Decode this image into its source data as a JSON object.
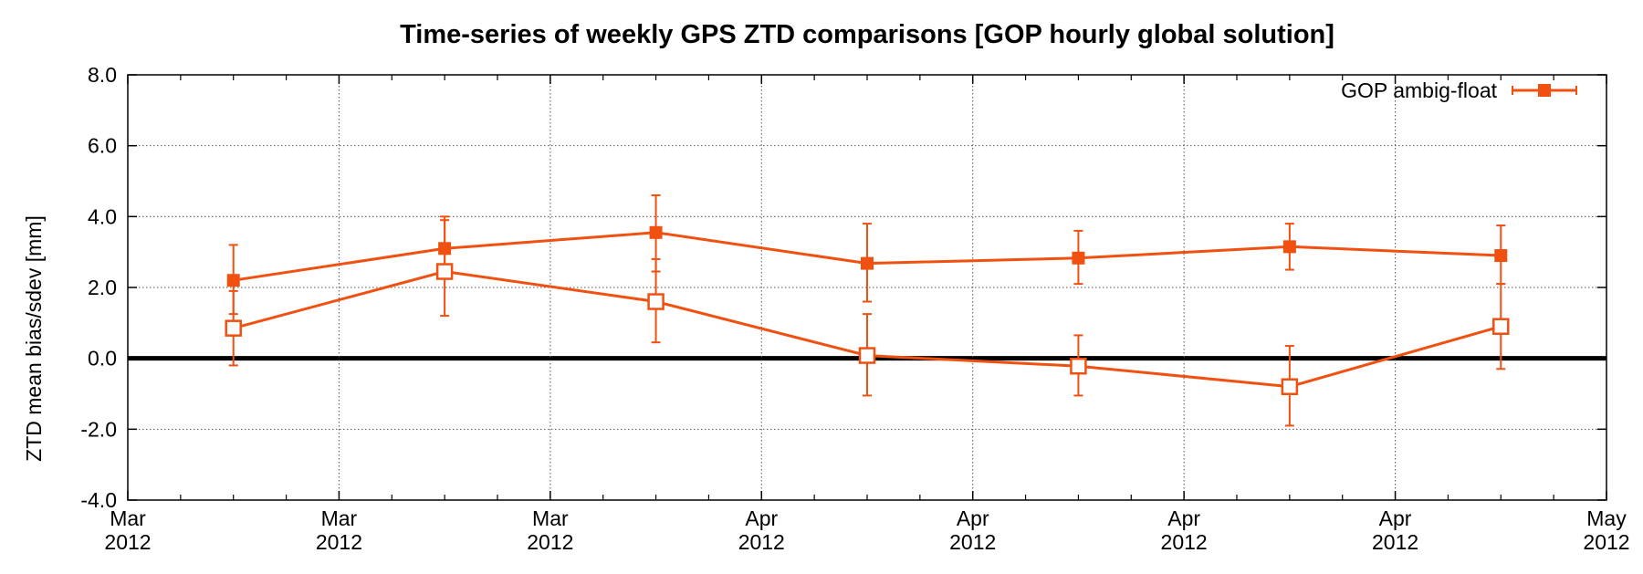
{
  "chart_data": {
    "type": "line",
    "title": "Time-series of weekly GPS ZTD comparisons [GOP hourly global solution]",
    "ylabel": "ZTD mean bias/sdev [mm]",
    "xlabel": "",
    "ylim": [
      -4.0,
      8.0
    ],
    "yticks": [
      "8.0",
      "6.0",
      "4.0",
      "2.0",
      "0.0",
      "-2.0",
      "-4.0"
    ],
    "xticks": [
      {
        "month": "Mar",
        "year": "2012"
      },
      {
        "month": "Mar",
        "year": "2012"
      },
      {
        "month": "Mar",
        "year": "2012"
      },
      {
        "month": "Apr",
        "year": "2012"
      },
      {
        "month": "Apr",
        "year": "2012"
      },
      {
        "month": "Apr",
        "year": "2012"
      },
      {
        "month": "Apr",
        "year": "2012"
      },
      {
        "month": "May",
        "year": "2012"
      }
    ],
    "x": [
      0.5,
      1.5,
      2.5,
      3.5,
      4.5,
      5.5,
      6.5
    ],
    "grid": true,
    "legend_position": "top-right",
    "series_color": "#f05010",
    "zero_line_color": "#000000",
    "series": [
      {
        "name": "GOP ambig-float",
        "marker": "filled-square",
        "values": [
          2.2,
          3.1,
          3.55,
          2.68,
          2.83,
          3.15,
          2.9
        ],
        "err_low": [
          1.25,
          2.4,
          2.45,
          1.6,
          2.1,
          2.5,
          2.1
        ],
        "err_high": [
          3.2,
          3.9,
          4.6,
          3.8,
          3.6,
          3.8,
          3.75
        ]
      },
      {
        "name": "",
        "marker": "open-square",
        "values": [
          0.85,
          2.45,
          1.6,
          0.08,
          -0.22,
          -0.8,
          0.9
        ],
        "err_low": [
          -0.2,
          1.2,
          0.45,
          -1.05,
          -1.05,
          -1.9,
          -0.3
        ],
        "err_high": [
          1.9,
          4.0,
          2.8,
          1.25,
          0.65,
          0.35,
          2.1
        ]
      }
    ]
  }
}
